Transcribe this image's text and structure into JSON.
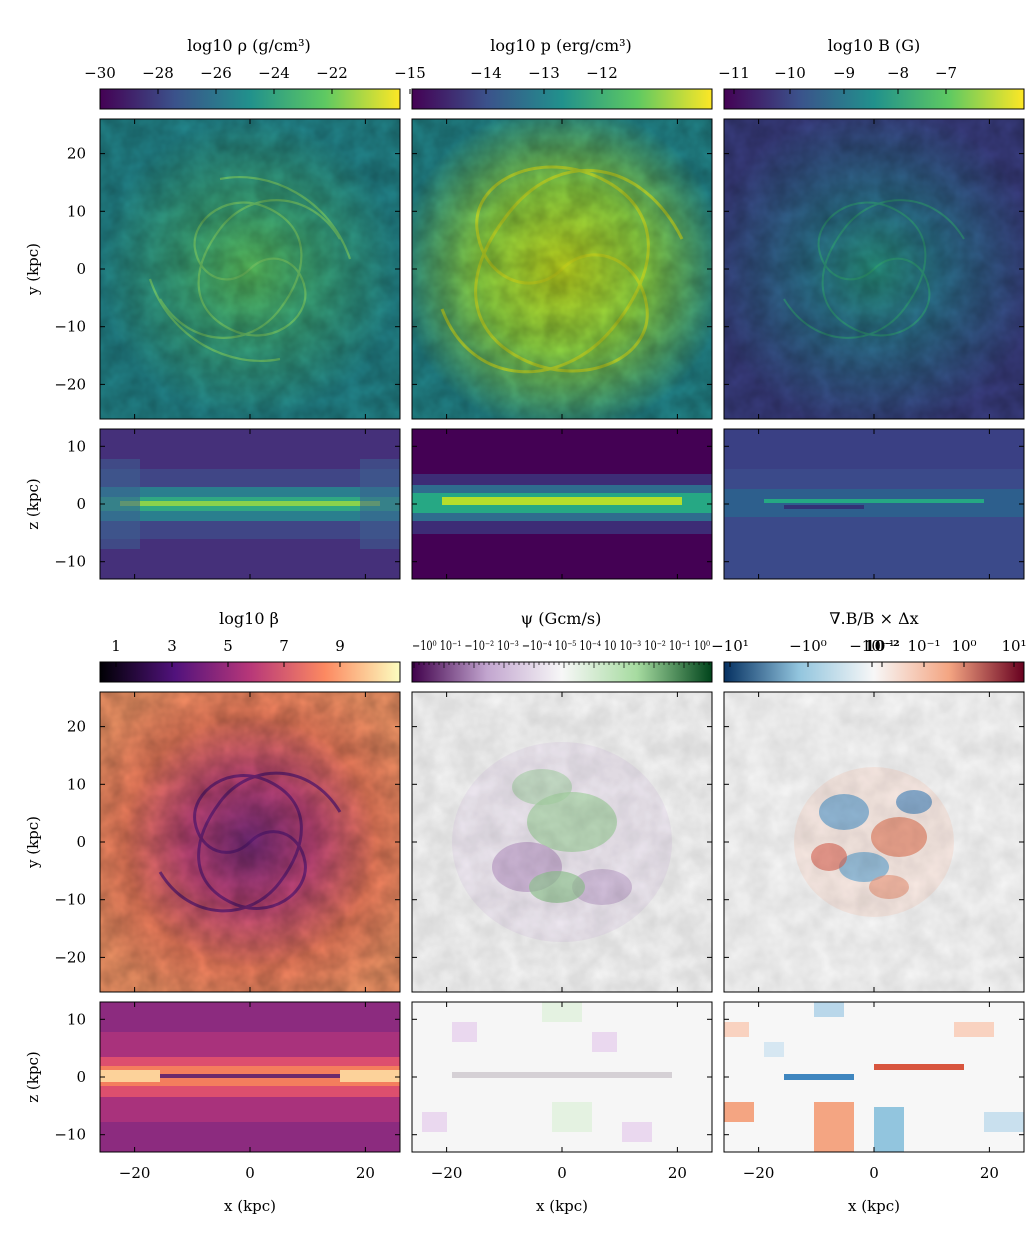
{
  "chart_data": [
    {
      "type": "heatmap",
      "name": "density",
      "colorbar": {
        "title": "log10 ρ (g/cm³)",
        "ticks": [
          "−30",
          "−28",
          "−26",
          "−24",
          "−22",
          "−15"
        ],
        "colormap": "viridis"
      },
      "panels": [
        {
          "view": "face-on",
          "ylabel": "y (kpc)",
          "yticks": [
            "20",
            "10",
            "0",
            "−10",
            "−20"
          ],
          "xlim": [
            -26,
            26
          ],
          "ylim": [
            -26,
            26
          ]
        },
        {
          "view": "edge-on",
          "ylabel": "z (kpc)",
          "yticks": [
            "10",
            "0",
            "−10"
          ],
          "xlim": [
            -26,
            26
          ],
          "ylim": [
            -13,
            13
          ]
        }
      ]
    },
    {
      "type": "heatmap",
      "name": "pressure",
      "colorbar": {
        "title": "log10 p (erg/cm³)",
        "ticks": [
          "−14",
          "−13",
          "−12"
        ],
        "colormap": "viridis"
      },
      "panels": [
        {
          "view": "face-on",
          "xlim": [
            -26,
            26
          ],
          "ylim": [
            -26,
            26
          ]
        },
        {
          "view": "edge-on",
          "xlim": [
            -26,
            26
          ],
          "ylim": [
            -13,
            13
          ]
        }
      ]
    },
    {
      "type": "heatmap",
      "name": "magnetic-field",
      "colorbar": {
        "title": "log10 B (G)",
        "ticks": [
          "−11",
          "−10",
          "−9",
          "−8",
          "−7"
        ],
        "colormap": "viridis"
      },
      "panels": [
        {
          "view": "face-on",
          "xlim": [
            -26,
            26
          ],
          "ylim": [
            -26,
            26
          ]
        },
        {
          "view": "edge-on",
          "xlim": [
            -26,
            26
          ],
          "ylim": [
            -13,
            13
          ]
        }
      ]
    },
    {
      "type": "heatmap",
      "name": "plasma-beta",
      "colorbar": {
        "title": "log10 β",
        "ticks": [
          "1",
          "3",
          "5",
          "7",
          "9"
        ],
        "colormap": "magma"
      },
      "panels": [
        {
          "view": "face-on",
          "ylabel": "y (kpc)",
          "yticks": [
            "20",
            "10",
            "0",
            "−10",
            "−20"
          ],
          "xlim": [
            -26,
            26
          ],
          "ylim": [
            -26,
            26
          ]
        },
        {
          "view": "edge-on",
          "ylabel": "z (kpc)",
          "yticks": [
            "10",
            "0",
            "−10"
          ],
          "xlabel": "x (kpc)",
          "xticks": [
            "−20",
            "0",
            "20"
          ],
          "xlim": [
            -26,
            26
          ],
          "ylim": [
            -13,
            13
          ]
        }
      ]
    },
    {
      "type": "heatmap",
      "name": "psi",
      "colorbar": {
        "title": "ψ (Gcm/s)",
        "ticks_text": "−10⁰ 10⁻¹ −10⁻² 10⁻³ −10⁻⁴ 10⁻⁵ 10⁻⁴ 10 10⁻³ 10⁻² 10⁻¹ 10⁰",
        "colormap": "PRGn"
      },
      "panels": [
        {
          "view": "face-on",
          "xlim": [
            -26,
            26
          ],
          "ylim": [
            -26,
            26
          ]
        },
        {
          "view": "edge-on",
          "xlabel": "x (kpc)",
          "xticks": [
            "−20",
            "0",
            "20"
          ],
          "xlim": [
            -26,
            26
          ],
          "ylim": [
            -13,
            13
          ]
        }
      ]
    },
    {
      "type": "heatmap",
      "name": "divergence-B",
      "colorbar": {
        "title": "∇.B/B × Δx",
        "ticks": [
          "−10¹",
          "−10⁰",
          "−10⁻¹",
          "10⁻²",
          "10⁻¹",
          "10⁰",
          "10¹"
        ],
        "colormap": "RdBu_r"
      },
      "panels": [
        {
          "view": "face-on",
          "xlim": [
            -26,
            26
          ],
          "ylim": [
            -26,
            26
          ]
        },
        {
          "view": "edge-on",
          "xlabel": "x (kpc)",
          "xticks": [
            "−20",
            "0",
            "20"
          ],
          "xlim": [
            -26,
            26
          ],
          "ylim": [
            -13,
            13
          ]
        }
      ]
    }
  ],
  "colors": {
    "viridis": [
      "#440154",
      "#3b528b",
      "#21918c",
      "#5ec962",
      "#fde725"
    ],
    "magma": [
      "#000004",
      "#51127c",
      "#b73779",
      "#fc8961",
      "#fcfdbf"
    ],
    "PRGn": [
      "#40004b",
      "#c2a5cf",
      "#f7f7f7",
      "#a6dba0",
      "#00441b"
    ],
    "RdBu_r": [
      "#053061",
      "#92c5de",
      "#f7f7f7",
      "#f4a582",
      "#67001f"
    ]
  }
}
